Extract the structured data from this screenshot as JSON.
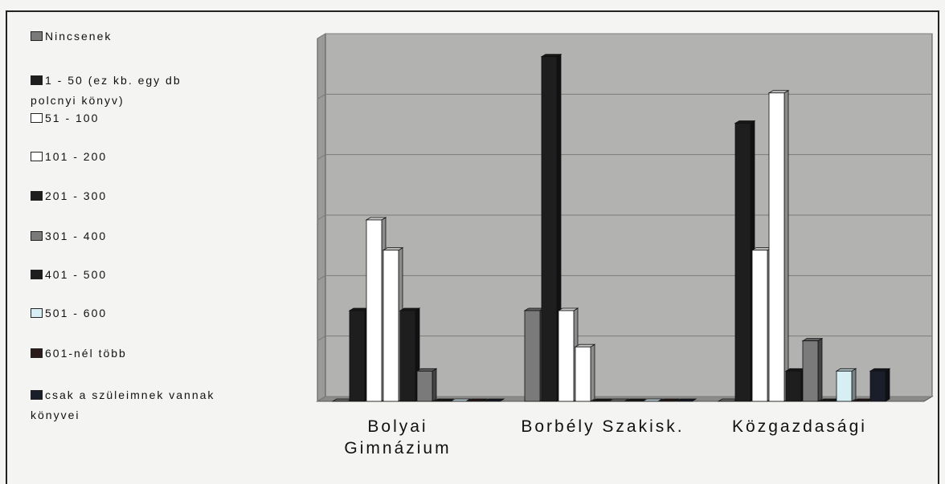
{
  "chart_data": {
    "type": "bar3d",
    "categories": [
      "Bolyai Gimnázium",
      "Borbély Szakisk.",
      "Közgazdasági"
    ],
    "series": [
      {
        "name": "Nincsenek",
        "color": "#7a7a7a",
        "values": [
          0,
          1.5,
          0
        ]
      },
      {
        "name": "1 - 50 (ez kb. egy db polcnyi könyv)",
        "color": "#1e1e1e",
        "values": [
          1.5,
          5.7,
          4.6
        ]
      },
      {
        "name": "51 - 100",
        "color": "#ffffff",
        "values": [
          3.0,
          1.5,
          2.5
        ]
      },
      {
        "name": "101 - 200",
        "color": "#ffffff",
        "values": [
          2.5,
          0.9,
          5.1
        ]
      },
      {
        "name": "201 - 300",
        "color": "#1e1e1e",
        "values": [
          1.5,
          0,
          0.5
        ]
      },
      {
        "name": "301 - 400",
        "color": "#7a7a7a",
        "values": [
          0.5,
          0,
          1.0
        ]
      },
      {
        "name": "401 - 500",
        "color": "#1e1e1e",
        "values": [
          0,
          0,
          0
        ]
      },
      {
        "name": "501 - 600",
        "color": "#d6eef4",
        "values": [
          0,
          0,
          0.5
        ]
      },
      {
        "name": "601-nél több",
        "color": "#2a1a1a",
        "values": [
          0,
          0,
          0
        ]
      },
      {
        "name": "csak a szüleimnek vannak könyvei",
        "color": "#1a1e2a",
        "values": [
          0,
          0,
          0.5
        ]
      }
    ],
    "ylim": [
      0,
      6
    ],
    "yticks": [
      0,
      1,
      2,
      3,
      4,
      5,
      6
    ],
    "grid": true
  }
}
